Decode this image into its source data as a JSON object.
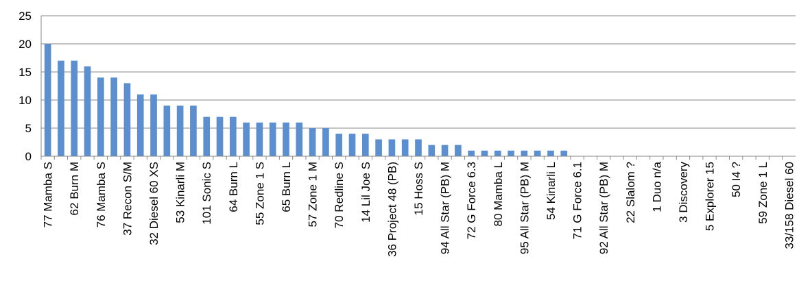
{
  "chart_data": {
    "type": "bar",
    "categories": [
      "77 Mamba S",
      null,
      "62 Burn M",
      null,
      "76 Mamba S",
      null,
      "37 Recon S/M",
      null,
      "32 Diesel 60 XS",
      null,
      "53 Kinarli M",
      null,
      "101 Sonic S",
      null,
      "64 Burn  L",
      null,
      "55 Zone 1 S",
      null,
      "65 Burn  L",
      null,
      "57 Zone 1 M",
      null,
      "70 Redline S",
      null,
      "14 Lil Joe S",
      null,
      "36 Project 48 (PB)",
      null,
      "15 Hoss S",
      null,
      "94 All Star (PB) M",
      null,
      "72 G Force 6.3",
      null,
      "80 Mamba L",
      null,
      "95 All Star (PB) M",
      null,
      "54 Kinarli L",
      null,
      "71 G Force 6.1",
      null,
      "92 All Star (PB) M",
      null,
      "22 Slalom ?",
      null,
      "1 Duo n/a",
      null,
      "3 Discovery",
      null,
      "5 Explorer 15",
      null,
      "50 I4 ?",
      null,
      "59 Zone 1 L",
      null,
      "33/158 Diesel 60"
    ],
    "values": [
      20,
      17,
      17,
      16,
      14,
      14,
      13,
      11,
      11,
      9,
      9,
      9,
      7,
      7,
      7,
      6,
      6,
      6,
      6,
      6,
      5,
      5,
      4,
      4,
      4,
      3,
      3,
      3,
      3,
      2,
      2,
      2,
      1,
      1,
      1,
      1,
      1,
      1,
      1,
      1,
      0,
      0,
      0,
      0,
      0,
      0,
      0,
      0,
      0,
      0,
      0,
      0,
      0,
      0,
      0,
      0,
      0
    ],
    "color": "#5b8fcf",
    "ylim": [
      0,
      25
    ],
    "yticks": [
      0,
      5,
      10,
      15,
      20,
      25
    ],
    "grid": true
  }
}
